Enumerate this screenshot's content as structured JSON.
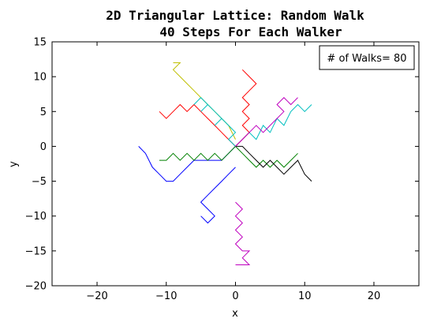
{
  "chart_data": {
    "type": "line",
    "title_line1": "2D Triangular Lattice: Random Walk",
    "title_line2": "40 Steps For Each Walker",
    "xlabel": "x",
    "ylabel": "y",
    "xlim": [
      -26.5,
      26.5
    ],
    "ylim": [
      -20,
      15
    ],
    "xticks": [
      -20,
      -10,
      0,
      10,
      20
    ],
    "xtick_labels": [
      "−20",
      "−10",
      "0",
      "10",
      "20"
    ],
    "yticks": [
      -20,
      -15,
      -10,
      -5,
      0,
      5,
      10,
      15
    ],
    "ytick_labels": [
      "−20",
      "−15",
      "−10",
      "−5",
      "0",
      "5",
      "10",
      "15"
    ],
    "grid": false,
    "annotation": "# of Walks= 80",
    "annotation_placement": "top-right",
    "num_walks": 80,
    "steps_per_walker": 40,
    "series_colors": [
      "#0000ff",
      "#008000",
      "#ff0000",
      "#00bfbf",
      "#bf00bf",
      "#bfbf00",
      "#000000"
    ],
    "series": [
      {
        "x": [
          0,
          -1,
          -2,
          -4,
          -6,
          -7,
          -8,
          -9,
          -10,
          -11,
          -12,
          -13,
          -14
        ],
        "y": [
          0,
          -1,
          -2,
          -2,
          -2,
          -3,
          -4,
          -5,
          -5,
          -4,
          -3,
          -1,
          0
        ]
      },
      {
        "x": [
          0,
          1,
          2,
          3,
          4,
          5,
          6,
          7,
          8,
          9
        ],
        "y": [
          0,
          -1,
          -2,
          -3,
          -2,
          -3,
          -2,
          -3,
          -2,
          -1
        ]
      },
      {
        "x": [
          0,
          -1,
          -2,
          -3,
          -4,
          -5,
          -6,
          -7,
          -8,
          -9,
          -10,
          -11
        ],
        "y": [
          0,
          1,
          2,
          3,
          4,
          5,
          6,
          5,
          6,
          5,
          4,
          5
        ]
      },
      {
        "x": [
          0,
          1,
          2,
          3,
          4,
          5,
          6,
          7,
          8,
          9,
          10,
          11
        ],
        "y": [
          0,
          1,
          2,
          1,
          3,
          2,
          4,
          3,
          5,
          6,
          5,
          6
        ]
      },
      {
        "x": [
          0,
          1,
          0,
          1,
          0,
          1,
          0,
          1,
          2,
          1,
          2,
          1,
          0
        ],
        "y": [
          -8,
          -9,
          -10,
          -11,
          -12,
          -13,
          -14,
          -15,
          -15,
          -16,
          -17,
          -17,
          -17
        ]
      },
      {
        "x": [
          0,
          -1,
          -2,
          -3,
          -4,
          -5,
          -6,
          -7,
          -8,
          -9,
          -8,
          -9
        ],
        "y": [
          1,
          3,
          4,
          5,
          6,
          7,
          8,
          9,
          10,
          11,
          12,
          12
        ]
      },
      {
        "x": [
          0,
          1,
          2,
          3,
          4,
          5,
          6,
          7,
          8,
          9,
          10,
          11
        ],
        "y": [
          0,
          0,
          -1,
          -2,
          -3,
          -2,
          -3,
          -4,
          -3,
          -2,
          -4,
          -5
        ]
      },
      {
        "x": [
          0,
          -1,
          -2,
          -3,
          -4,
          -5,
          -4,
          -3,
          -4,
          -5
        ],
        "y": [
          -3,
          -4,
          -5,
          -6,
          -7,
          -8,
          -9,
          -10,
          -11,
          -10
        ]
      },
      {
        "x": [
          0,
          -1,
          -2,
          -3,
          -4,
          -5,
          -6,
          -7,
          -8,
          -9,
          -10,
          -11
        ],
        "y": [
          0,
          -1,
          -2,
          -1,
          -2,
          -1,
          -2,
          -1,
          -2,
          -1,
          -2,
          -2
        ]
      },
      {
        "x": [
          0,
          1,
          2,
          1,
          2,
          1,
          2,
          1,
          2,
          3,
          2,
          1
        ],
        "y": [
          0,
          1,
          2,
          3,
          4,
          5,
          6,
          7,
          8,
          9,
          10,
          11
        ]
      },
      {
        "x": [
          0,
          -1,
          0,
          -1,
          -2,
          -3,
          -2,
          -3,
          -4,
          -5,
          -4,
          -5,
          -6
        ],
        "y": [
          0,
          1,
          2,
          3,
          4,
          3,
          4,
          5,
          6,
          5,
          6,
          7,
          6
        ]
      },
      {
        "x": [
          0,
          1,
          2,
          3,
          4,
          5,
          6,
          7,
          6,
          7,
          8,
          9
        ],
        "y": [
          0,
          1,
          2,
          3,
          2,
          3,
          4,
          5,
          6,
          7,
          6,
          7
        ]
      }
    ]
  }
}
